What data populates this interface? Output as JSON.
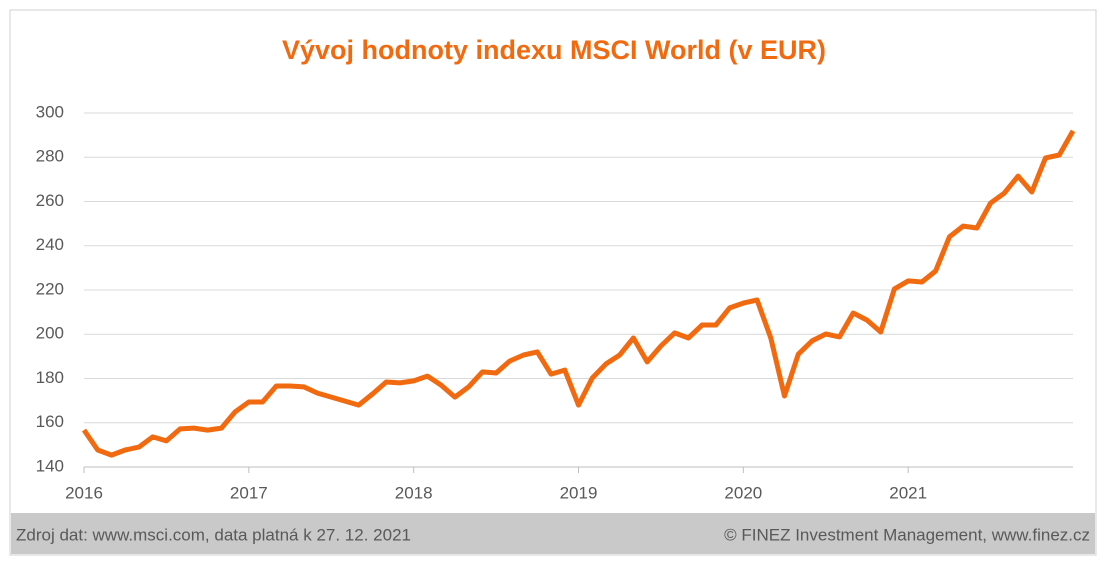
{
  "chart_data": {
    "type": "line",
    "title": "Vývoj hodnoty indexu MSCI World (v EUR)",
    "x": [
      2016,
      2016.0833,
      2016.1667,
      2016.25,
      2016.3333,
      2016.4167,
      2016.5,
      2016.5833,
      2016.6667,
      2016.75,
      2016.8333,
      2016.9167,
      2017,
      2017.0833,
      2017.1667,
      2017.25,
      2017.3333,
      2017.4167,
      2017.5,
      2017.5833,
      2017.6667,
      2017.75,
      2017.8333,
      2017.9167,
      2018,
      2018.0833,
      2018.1667,
      2018.25,
      2018.3333,
      2018.4167,
      2018.5,
      2018.5833,
      2018.6667,
      2018.75,
      2018.8333,
      2018.9167,
      2019,
      2019.0833,
      2019.1667,
      2019.25,
      2019.3333,
      2019.4167,
      2019.5,
      2019.5833,
      2019.6667,
      2019.75,
      2019.8333,
      2019.9167,
      2020,
      2020.0833,
      2020.1667,
      2020.25,
      2020.3333,
      2020.4167,
      2020.5,
      2020.5833,
      2020.6667,
      2020.75,
      2020.8333,
      2020.9167,
      2021,
      2021.0833,
      2021.1667,
      2021.25,
      2021.3333,
      2021.4167,
      2021.5,
      2021.5833,
      2021.6667,
      2021.75,
      2021.8333,
      2021.9167,
      2022
    ],
    "series": [
      {
        "name": "MSCI World",
        "color": "#f26a10",
        "values": [
          156.7,
          147.7,
          145.4,
          147.7,
          149,
          153.6,
          151.8,
          157.2,
          157.6,
          156.7,
          157.6,
          164.9,
          169.4,
          169.4,
          176.6,
          176.6,
          176.2,
          173.4,
          171.6,
          169.8,
          168,
          173,
          178.4,
          178,
          178.9,
          181.1,
          177,
          171.6,
          176.2,
          183,
          182.5,
          187.9,
          190.6,
          192,
          182,
          183.8,
          168,
          180.2,
          186.6,
          190.6,
          198.3,
          187.5,
          194.7,
          200.6,
          198.3,
          204.2,
          204.2,
          211.9,
          214.1,
          215.5,
          198.3,
          172.1,
          191,
          197,
          200.1,
          198.8,
          209.6,
          206.4,
          201,
          220.5,
          224.1,
          223.6,
          228.6,
          244,
          248.9,
          248,
          259.3,
          263.8,
          271.5,
          264.3,
          279.7,
          281,
          291.9
        ]
      }
    ],
    "xlim": [
      2016,
      2022
    ],
    "xticks": [
      2016,
      2017,
      2018,
      2019,
      2020,
      2021
    ],
    "ylim": [
      140,
      300
    ],
    "yticks": [
      140,
      160,
      180,
      200,
      220,
      240,
      260,
      280,
      300
    ],
    "grid": true,
    "source": "Zdroj dat: www.msci.com, data platná k 27. 12. 2021",
    "copyright": "© FINEZ Investment Management, www.finez.cz"
  }
}
